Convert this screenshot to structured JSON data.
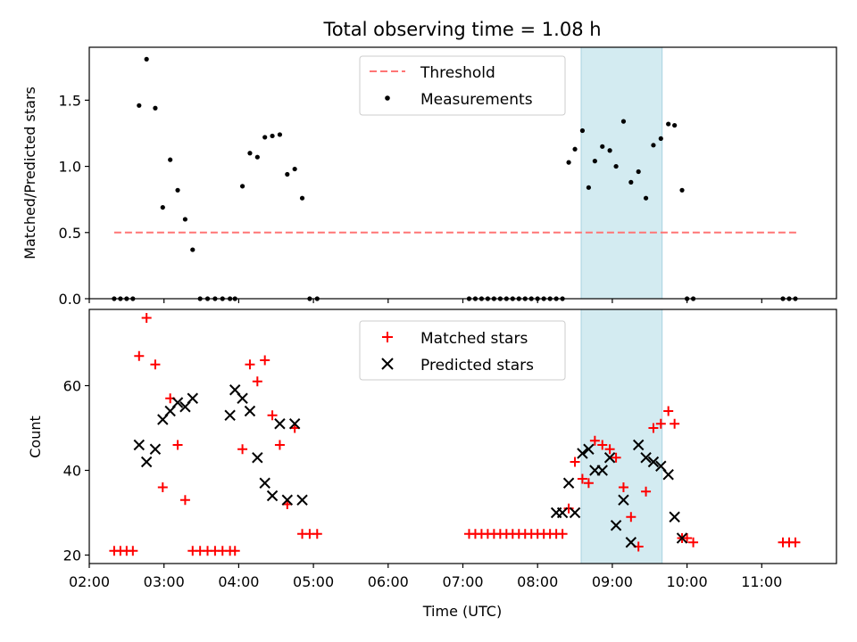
{
  "chart_data": [
    {
      "type": "scatter",
      "title": "Total observing time = 1.08 h",
      "ylabel": "Matched/Predicted stars",
      "xlabel": "",
      "xlim": [
        "02:00",
        "12:00"
      ],
      "ylim": [
        0,
        1.9
      ],
      "yticks": [
        "0.0",
        "0.5",
        "1.0",
        "1.5"
      ],
      "highlight_band": {
        "x": [
          "08:35",
          "09:40"
        ],
        "color": "#d3ebf1"
      },
      "legend": {
        "placement": "top-center",
        "entries": [
          "Threshold",
          "Measurements"
        ]
      },
      "colors": {
        "threshold": "#ff7575",
        "measurements": "#000000",
        "band": "#add8e6"
      },
      "series": [
        {
          "name": "Threshold",
          "style": "dashed-line",
          "x": [
            "02:20",
            "11:30"
          ],
          "y": [
            0.5,
            0.5
          ]
        },
        {
          "name": "Measurements",
          "style": "dot",
          "x": [
            "02:20",
            "02:25",
            "02:30",
            "02:35",
            "02:40",
            "02:46",
            "02:53",
            "02:59",
            "03:05",
            "03:11",
            "03:17",
            "03:23",
            "03:29",
            "03:35",
            "03:41",
            "03:47",
            "03:53",
            "03:57",
            "04:03",
            "04:09",
            "04:15",
            "04:21",
            "04:27",
            "04:33",
            "04:39",
            "04:45",
            "04:51",
            "04:57",
            "05:03",
            "07:05",
            "07:10",
            "07:15",
            "07:20",
            "07:25",
            "07:30",
            "07:35",
            "07:40",
            "07:45",
            "07:50",
            "07:55",
            "08:00",
            "08:05",
            "08:10",
            "08:15",
            "08:20",
            "08:25",
            "08:30",
            "08:36",
            "08:41",
            "08:46",
            "08:52",
            "08:58",
            "09:03",
            "09:09",
            "09:15",
            "09:21",
            "09:27",
            "09:33",
            "09:39",
            "09:45",
            "09:50",
            "09:56",
            "10:00",
            "10:05",
            "11:17",
            "11:22",
            "11:27"
          ],
          "y": [
            0,
            0,
            0,
            0,
            1.46,
            1.81,
            1.44,
            0.69,
            1.05,
            0.82,
            0.6,
            0.37,
            0,
            0,
            0,
            0,
            0,
            0,
            0.85,
            1.1,
            1.07,
            1.22,
            1.23,
            1.24,
            0.94,
            0.98,
            0.76,
            0,
            0,
            0,
            0,
            0,
            0,
            0,
            0,
            0,
            0,
            0,
            0,
            0,
            0,
            0,
            0,
            0,
            0,
            1.03,
            1.13,
            1.27,
            0.84,
            1.04,
            1.15,
            1.12,
            1.0,
            1.34,
            0.88,
            0.96,
            0.76,
            1.16,
            1.21,
            1.32,
            1.31,
            0.82,
            0,
            0,
            0,
            0,
            0
          ]
        }
      ]
    },
    {
      "type": "scatter",
      "title": "",
      "ylabel": "Count",
      "xlabel": "Time (UTC)",
      "xlim": [
        "02:00",
        "12:00"
      ],
      "ylim": [
        18,
        78
      ],
      "yticks": [
        "20",
        "40",
        "60"
      ],
      "xticks": [
        "02:00",
        "03:00",
        "04:00",
        "05:00",
        "06:00",
        "07:00",
        "08:00",
        "09:00",
        "10:00",
        "11:00"
      ],
      "highlight_band": {
        "x": [
          "08:35",
          "09:40"
        ],
        "color": "#d3ebf1"
      },
      "legend": {
        "placement": "top-center",
        "entries": [
          "Matched stars",
          "Predicted stars"
        ]
      },
      "colors": {
        "matched": "#ff0000",
        "predicted": "#000000"
      },
      "series": [
        {
          "name": "Matched stars",
          "marker": "plus",
          "x": [
            "02:20",
            "02:25",
            "02:30",
            "02:35",
            "02:40",
            "02:46",
            "02:53",
            "02:59",
            "03:05",
            "03:11",
            "03:17",
            "03:23",
            "03:29",
            "03:35",
            "03:41",
            "03:47",
            "03:53",
            "03:57",
            "04:03",
            "04:09",
            "04:15",
            "04:21",
            "04:27",
            "04:33",
            "04:39",
            "04:45",
            "04:51",
            "04:57",
            "05:03",
            "07:05",
            "07:10",
            "07:15",
            "07:20",
            "07:25",
            "07:30",
            "07:35",
            "07:40",
            "07:45",
            "07:50",
            "07:55",
            "08:00",
            "08:05",
            "08:10",
            "08:15",
            "08:20",
            "08:25",
            "08:30",
            "08:36",
            "08:41",
            "08:46",
            "08:52",
            "08:58",
            "09:03",
            "09:09",
            "09:15",
            "09:21",
            "09:27",
            "09:33",
            "09:39",
            "09:45",
            "09:50",
            "09:56",
            "10:00",
            "10:05",
            "11:17",
            "11:22",
            "11:27"
          ],
          "y": [
            21,
            21,
            21,
            21,
            67,
            76,
            65,
            36,
            57,
            46,
            33,
            21,
            21,
            21,
            21,
            21,
            21,
            21,
            45,
            65,
            61,
            66,
            53,
            46,
            32,
            50,
            25,
            25,
            25,
            25,
            25,
            25,
            25,
            25,
            25,
            25,
            25,
            25,
            25,
            25,
            25,
            25,
            25,
            25,
            25,
            31,
            42,
            38,
            37,
            47,
            46,
            45,
            43,
            36,
            29,
            22,
            35,
            50,
            51,
            54,
            51,
            24,
            24,
            23,
            23,
            23,
            23
          ]
        },
        {
          "name": "Predicted stars",
          "marker": "x",
          "x": [
            "02:40",
            "02:46",
            "02:53",
            "02:59",
            "03:05",
            "03:11",
            "03:17",
            "03:23",
            "03:53",
            "03:57",
            "04:03",
            "04:09",
            "04:15",
            "04:21",
            "04:27",
            "04:33",
            "04:39",
            "04:45",
            "04:51",
            "08:15",
            "08:20",
            "08:25",
            "08:30",
            "08:36",
            "08:41",
            "08:46",
            "08:52",
            "08:58",
            "09:03",
            "09:09",
            "09:15",
            "09:21",
            "09:27",
            "09:33",
            "09:39",
            "09:45",
            "09:50",
            "09:56"
          ],
          "y": [
            46,
            42,
            45,
            52,
            54,
            56,
            55,
            57,
            53,
            59,
            57,
            54,
            43,
            37,
            34,
            51,
            33,
            51,
            33,
            30,
            30,
            37,
            30,
            44,
            45,
            40,
            40,
            43,
            27,
            33,
            23,
            46,
            43,
            42,
            41,
            39,
            29,
            24
          ]
        }
      ]
    }
  ]
}
